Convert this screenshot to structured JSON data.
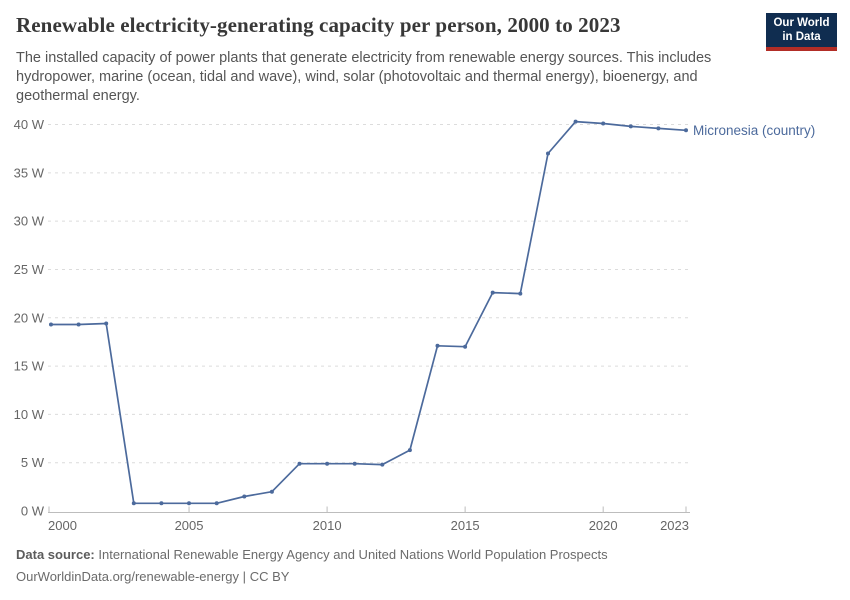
{
  "header": {
    "title": "Renewable electricity-generating capacity per person, 2000 to 2023",
    "subtitle": "The installed capacity of power plants that generate electricity from renewable energy sources. This includes hydropower, marine (ocean, tidal and wave), wind, solar (photovoltaic and thermal energy), bioenergy, and geothermal energy.",
    "logo": {
      "line1": "Our World",
      "line2": "in Data"
    }
  },
  "chart_data": {
    "type": "line",
    "title": "Renewable electricity-generating capacity per person, 2000 to 2023",
    "xlabel": "",
    "ylabel": "",
    "unit": "W",
    "xlim": [
      2000,
      2023
    ],
    "ylim": [
      0,
      40
    ],
    "grid": "horizontal-dashed",
    "legend": "inline-end-label",
    "x": [
      2000,
      2001,
      2002,
      2003,
      2004,
      2005,
      2006,
      2007,
      2008,
      2009,
      2010,
      2011,
      2012,
      2013,
      2014,
      2015,
      2016,
      2017,
      2018,
      2019,
      2020,
      2021,
      2022,
      2023
    ],
    "series": [
      {
        "name": "Micronesia (country)",
        "color": "#4c6a9c",
        "values": [
          19.3,
          19.3,
          19.4,
          0.8,
          0.8,
          0.8,
          0.8,
          1.5,
          2.0,
          4.9,
          4.9,
          4.9,
          4.8,
          6.3,
          17.1,
          17.0,
          22.6,
          22.5,
          37.0,
          40.3,
          40.1,
          39.8,
          39.6,
          39.4
        ]
      }
    ],
    "y_ticks": [
      {
        "v": 0,
        "label": "0 W"
      },
      {
        "v": 5,
        "label": "5 W"
      },
      {
        "v": 10,
        "label": "10 W"
      },
      {
        "v": 15,
        "label": "15 W"
      },
      {
        "v": 20,
        "label": "20 W"
      },
      {
        "v": 25,
        "label": "25 W"
      },
      {
        "v": 30,
        "label": "30 W"
      },
      {
        "v": 35,
        "label": "35 W"
      },
      {
        "v": 40,
        "label": "40 W"
      }
    ],
    "x_ticks": [
      {
        "v": 2000,
        "label": "2000"
      },
      {
        "v": 2005,
        "label": "2005"
      },
      {
        "v": 2010,
        "label": "2010"
      },
      {
        "v": 2015,
        "label": "2015"
      },
      {
        "v": 2020,
        "label": "2020"
      },
      {
        "v": 2023,
        "label": "2023"
      }
    ]
  },
  "footer": {
    "datasource_label": "Data source:",
    "datasource_text": "International Renewable Energy Agency and United Nations World Population Prospects",
    "url": "OurWorldinData.org/renewable-energy",
    "separator": "|",
    "license": "CC BY"
  },
  "colors": {
    "line": "#4c6a9c",
    "grid": "#dcdcdc",
    "axis": "#bdbdbd",
    "tick_text": "#666666",
    "logo_bg": "#102d50",
    "logo_red": "#b22d26"
  }
}
